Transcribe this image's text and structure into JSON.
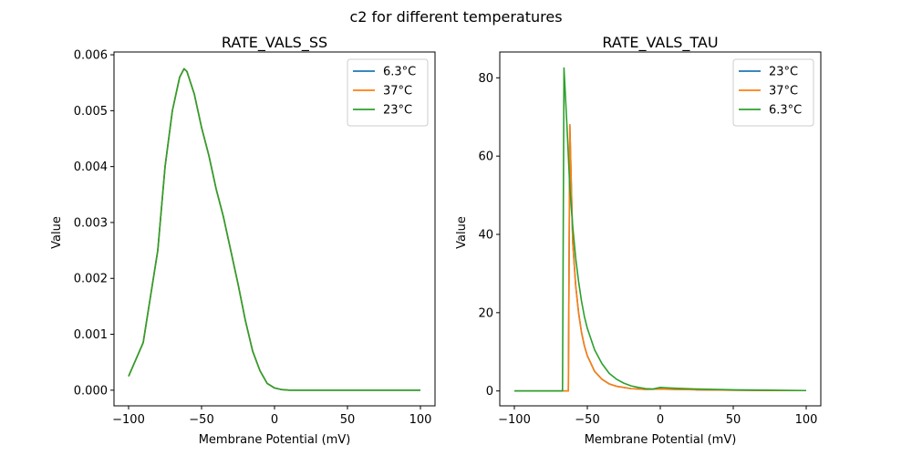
{
  "figure": {
    "suptitle": "c2 for different temperatures"
  },
  "chart_data": [
    {
      "type": "line",
      "title": "RATE_VALS_SS",
      "xlabel": "Membrane Potential (mV)",
      "ylabel": "Value",
      "xlim": [
        -110,
        110
      ],
      "ylim": [
        -0.00028,
        0.00605
      ],
      "xticks": [
        -100,
        -50,
        0,
        50,
        100
      ],
      "xtick_labels": [
        "−100",
        "−50",
        "0",
        "50",
        "100"
      ],
      "yticks": [
        0.0,
        0.001,
        0.002,
        0.003,
        0.004,
        0.005,
        0.006
      ],
      "ytick_labels": [
        "0.000",
        "0.001",
        "0.002",
        "0.003",
        "0.004",
        "0.005",
        "0.006"
      ],
      "legend_position": "upper right",
      "grid": false,
      "series": [
        {
          "name": "6.3°C",
          "color": "#1f77b4",
          "x": [
            -100,
            -90,
            -80,
            -75,
            -70,
            -65,
            -62,
            -60,
            -55,
            -50,
            -45,
            -40,
            -35,
            -30,
            -25,
            -20,
            -15,
            -10,
            -5,
            0,
            5,
            10,
            15,
            20,
            30,
            50,
            75,
            100
          ],
          "y": [
            0.00025,
            0.00085,
            0.0025,
            0.004,
            0.005,
            0.0056,
            0.00575,
            0.0057,
            0.0053,
            0.0047,
            0.0042,
            0.0036,
            0.0031,
            0.0025,
            0.0019,
            0.00125,
            0.0007,
            0.00035,
            0.00012,
            4e-05,
            1e-05,
            0.0,
            0.0,
            0.0,
            0.0,
            0.0,
            0.0,
            0.0
          ]
        },
        {
          "name": "37°C",
          "color": "#ff7f0e",
          "x": [
            -100,
            -90,
            -80,
            -75,
            -70,
            -65,
            -62,
            -60,
            -55,
            -50,
            -45,
            -40,
            -35,
            -30,
            -25,
            -20,
            -15,
            -10,
            -5,
            0,
            5,
            10,
            15,
            20,
            30,
            50,
            75,
            100
          ],
          "y": [
            0.00025,
            0.00085,
            0.0025,
            0.004,
            0.005,
            0.0056,
            0.00575,
            0.0057,
            0.0053,
            0.0047,
            0.0042,
            0.0036,
            0.0031,
            0.0025,
            0.0019,
            0.00125,
            0.0007,
            0.00035,
            0.00012,
            4e-05,
            1e-05,
            0.0,
            0.0,
            0.0,
            0.0,
            0.0,
            0.0,
            0.0
          ]
        },
        {
          "name": "23°C",
          "color": "#2ca02c",
          "x": [
            -100,
            -90,
            -80,
            -75,
            -70,
            -65,
            -62,
            -60,
            -55,
            -50,
            -45,
            -40,
            -35,
            -30,
            -25,
            -20,
            -15,
            -10,
            -5,
            0,
            5,
            10,
            15,
            20,
            30,
            50,
            75,
            100
          ],
          "y": [
            0.00025,
            0.00085,
            0.0025,
            0.004,
            0.005,
            0.0056,
            0.00575,
            0.0057,
            0.0053,
            0.0047,
            0.0042,
            0.0036,
            0.0031,
            0.0025,
            0.0019,
            0.00125,
            0.0007,
            0.00035,
            0.00012,
            4e-05,
            1e-05,
            0.0,
            0.0,
            0.0,
            0.0,
            0.0,
            0.0,
            0.0
          ]
        }
      ]
    },
    {
      "type": "line",
      "title": "RATE_VALS_TAU",
      "xlabel": "Membrane Potential (mV)",
      "ylabel": "Value",
      "xlim": [
        -110,
        110
      ],
      "ylim": [
        -3.8,
        86.6
      ],
      "xticks": [
        -100,
        -50,
        0,
        50,
        100
      ],
      "xtick_labels": [
        "−100",
        "−50",
        "0",
        "50",
        "100"
      ],
      "yticks": [
        0,
        20,
        40,
        60,
        80
      ],
      "ytick_labels": [
        "0",
        "20",
        "40",
        "60",
        "80"
      ],
      "legend_position": "upper right",
      "grid": false,
      "series": [
        {
          "name": "23°C",
          "color": "#1f77b4",
          "x": [
            -100,
            -80,
            -64,
            -63,
            -62,
            -60,
            -58,
            -56,
            -54,
            -52,
            -50,
            -45,
            -40,
            -35,
            -30,
            -20,
            -10,
            0,
            10,
            25,
            50,
            75,
            100
          ],
          "y": [
            0,
            0,
            0,
            0,
            68,
            38,
            27,
            20,
            15,
            11.5,
            9,
            5,
            3,
            1.8,
            1.2,
            0.6,
            0.4,
            0.5,
            0.4,
            0.3,
            0.2,
            0.1,
            0.1
          ]
        },
        {
          "name": "37°C",
          "color": "#ff7f0e",
          "x": [
            -100,
            -80,
            -64,
            -63,
            -62,
            -60,
            -58,
            -56,
            -54,
            -52,
            -50,
            -45,
            -40,
            -35,
            -30,
            -20,
            -10,
            0,
            10,
            25,
            50,
            75,
            100
          ],
          "y": [
            0,
            0,
            0,
            0,
            68,
            38,
            27,
            20,
            15,
            11.5,
            9,
            5,
            3,
            1.8,
            1.2,
            0.6,
            0.4,
            0.5,
            0.4,
            0.3,
            0.2,
            0.1,
            0.1
          ]
        },
        {
          "name": "6.3°C",
          "color": "#2ca02c",
          "x": [
            -100,
            -80,
            -68,
            -67,
            -66,
            -64,
            -62,
            -60,
            -58,
            -56,
            -54,
            -52,
            -50,
            -45,
            -40,
            -35,
            -30,
            -25,
            -20,
            -15,
            -10,
            -5,
            0,
            5,
            10,
            25,
            50,
            75,
            100
          ],
          "y": [
            0,
            0,
            0,
            0,
            82.5,
            68,
            52,
            42,
            34,
            28,
            23,
            19,
            16,
            10.5,
            7,
            4.5,
            3,
            2,
            1.3,
            0.9,
            0.6,
            0.5,
            0.9,
            0.8,
            0.7,
            0.5,
            0.3,
            0.2,
            0.1
          ]
        }
      ]
    }
  ]
}
